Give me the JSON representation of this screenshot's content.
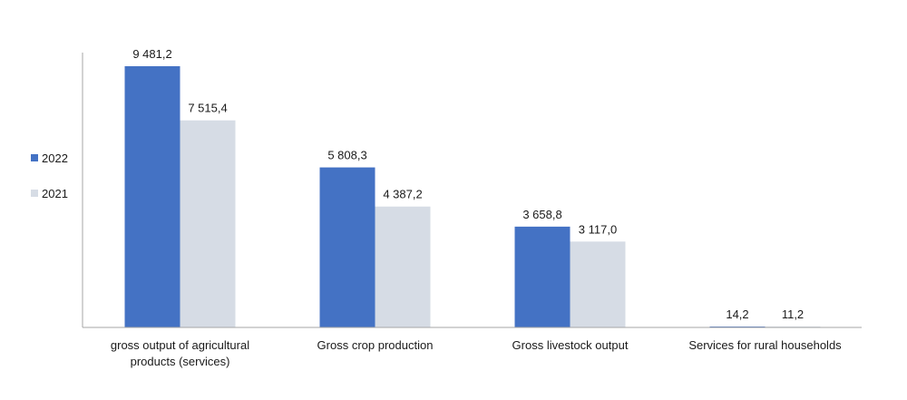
{
  "chart_data": {
    "type": "bar",
    "categories": [
      [
        "gross output of agricultural",
        "products (services)"
      ],
      [
        "Gross crop production"
      ],
      [
        "Gross livestock output"
      ],
      [
        "Services for rural households"
      ]
    ],
    "series": [
      {
        "name": "2022",
        "color": "#4472C4",
        "values": [
          9481.2,
          5808.3,
          3658.8,
          14.2
        ],
        "labels": [
          "9 481,2",
          "5 808,3",
          "3 658,8",
          "14,2"
        ]
      },
      {
        "name": "2021",
        "color": "#D6DCE5",
        "values": [
          7515.4,
          4387.2,
          3117.0,
          11.2
        ],
        "labels": [
          "7 515,4",
          "4 387,2",
          "3 117,0",
          "11,2"
        ]
      }
    ],
    "ylim": [
      0,
      10000
    ],
    "legend_position": "left",
    "grid": false,
    "axis_color": "#A6A6A6"
  }
}
